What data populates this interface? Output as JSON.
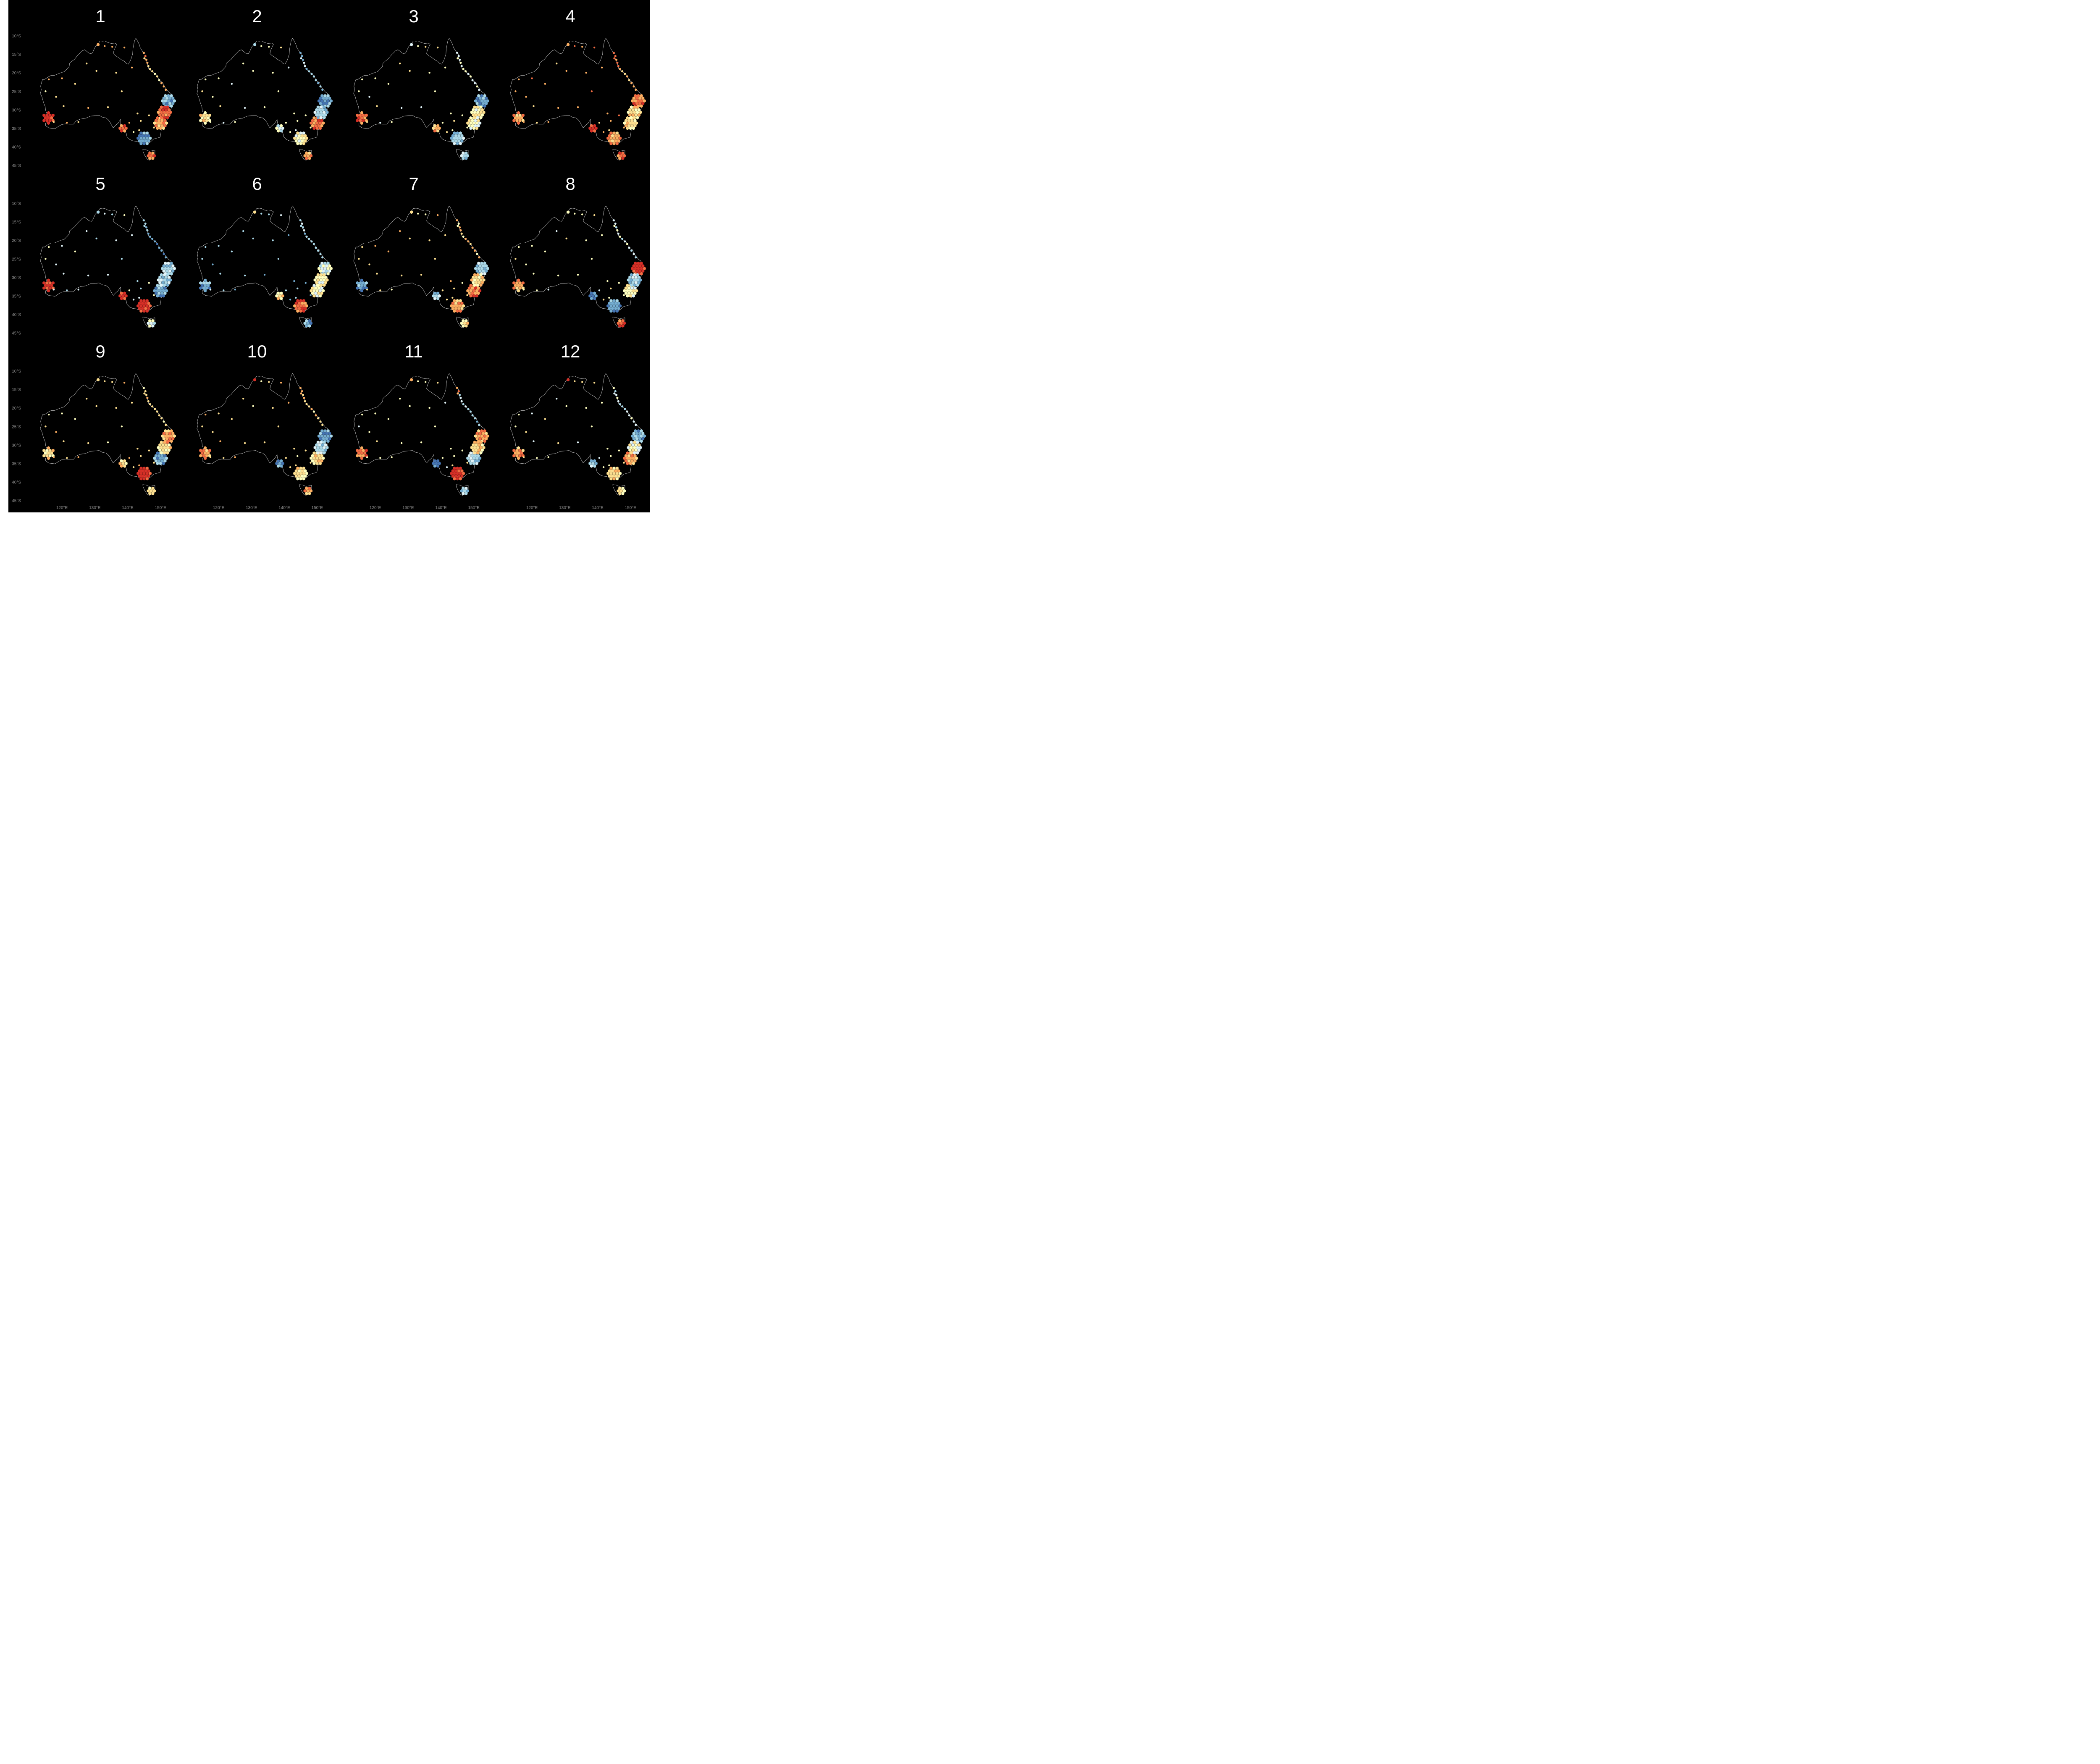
{
  "palette": [
    "#d73027",
    "#f46d43",
    "#fdae61",
    "#fee090",
    "#ffffbf",
    "#e0f3f8",
    "#abd9e9",
    "#74add1",
    "#4575b4"
  ],
  "background": "#000000",
  "coast_color": "#d8d8d8",
  "y_axis_labels": [
    "10°S",
    "15°S",
    "20°S",
    "25°S",
    "30°S",
    "35°S",
    "40°S",
    "45°S"
  ],
  "x_axis_labels": [
    "120°E",
    "130°E",
    "140°E",
    "150°E"
  ],
  "panels": [
    {
      "title": "1",
      "levels": {
        "sw": 0,
        "ne_coast": 2,
        "brisbane": 7,
        "sydney": 2,
        "east_coast": 1,
        "melbourne": 7,
        "adelaide": 1,
        "tasmania": 1,
        "darwin": 2,
        "inland": 3,
        "qld_coast": 3
      }
    },
    {
      "title": "2",
      "levels": {
        "sw": 3,
        "ne_coast": 6,
        "brisbane": 7,
        "sydney": 1,
        "east_coast": 6,
        "melbourne": 4,
        "adelaide": 5,
        "tasmania": 2,
        "darwin": 6,
        "inland": 4,
        "qld_coast": 6
      }
    },
    {
      "title": "3",
      "levels": {
        "sw": 1,
        "ne_coast": 5,
        "brisbane": 7,
        "sydney": 4,
        "east_coast": 4,
        "melbourne": 6,
        "adelaide": 2,
        "tasmania": 6,
        "darwin": 5,
        "inland": 4,
        "qld_coast": 5
      }
    },
    {
      "title": "4",
      "levels": {
        "sw": 2,
        "ne_coast": 1,
        "brisbane": 1,
        "sydney": 3,
        "east_coast": 3,
        "melbourne": 2,
        "adelaide": 0,
        "tasmania": 1,
        "darwin": 2,
        "inland": 2,
        "qld_coast": 2
      }
    },
    {
      "title": "5",
      "levels": {
        "sw": 0,
        "ne_coast": 6,
        "brisbane": 6,
        "sydney": 7,
        "east_coast": 6,
        "melbourne": 0,
        "adelaide": 0,
        "tasmania": 5,
        "darwin": 6,
        "inland": 5,
        "qld_coast": 7
      }
    },
    {
      "title": "6",
      "levels": {
        "sw": 7,
        "ne_coast": 6,
        "brisbane": 5,
        "sydney": 4,
        "east_coast": 4,
        "melbourne": 1,
        "adelaide": 3,
        "tasmania": 7,
        "darwin": 3,
        "inland": 6,
        "qld_coast": 6
      }
    },
    {
      "title": "7",
      "levels": {
        "sw": 7,
        "ne_coast": 3,
        "brisbane": 6,
        "sydney": 1,
        "east_coast": 3,
        "melbourne": 2,
        "adelaide": 6,
        "tasmania": 3,
        "darwin": 3,
        "inland": 3,
        "qld_coast": 3
      }
    },
    {
      "title": "8",
      "levels": {
        "sw": 2,
        "ne_coast": 5,
        "brisbane": 0,
        "sydney": 4,
        "east_coast": 6,
        "melbourne": 7,
        "adelaide": 8,
        "tasmania": 1,
        "darwin": 4,
        "inland": 4,
        "qld_coast": 5
      }
    },
    {
      "title": "9",
      "levels": {
        "sw": 3,
        "ne_coast": 3,
        "brisbane": 2,
        "sydney": 7,
        "east_coast": 3,
        "melbourne": 0,
        "adelaide": 3,
        "tasmania": 3,
        "darwin": 3,
        "inland": 3,
        "qld_coast": 3
      }
    },
    {
      "title": "10",
      "levels": {
        "sw": 2,
        "ne_coast": 2,
        "brisbane": 7,
        "sydney": 3,
        "east_coast": 6,
        "melbourne": 3,
        "adelaide": 7,
        "tasmania": 2,
        "darwin": 0,
        "inland": 3,
        "qld_coast": 3
      }
    },
    {
      "title": "11",
      "levels": {
        "sw": 1,
        "ne_coast": 2,
        "brisbane": 2,
        "sydney": 6,
        "east_coast": 3,
        "melbourne": 0,
        "adelaide": 8,
        "tasmania": 6,
        "darwin": 2,
        "inland": 4,
        "qld_coast": 6
      }
    },
    {
      "title": "12",
      "levels": {
        "sw": 2,
        "ne_coast": 5,
        "brisbane": 7,
        "sydney": 2,
        "east_coast": 4,
        "melbourne": 3,
        "adelaide": 6,
        "tasmania": 3,
        "darwin": 0,
        "inland": 4,
        "qld_coast": 5
      }
    }
  ]
}
